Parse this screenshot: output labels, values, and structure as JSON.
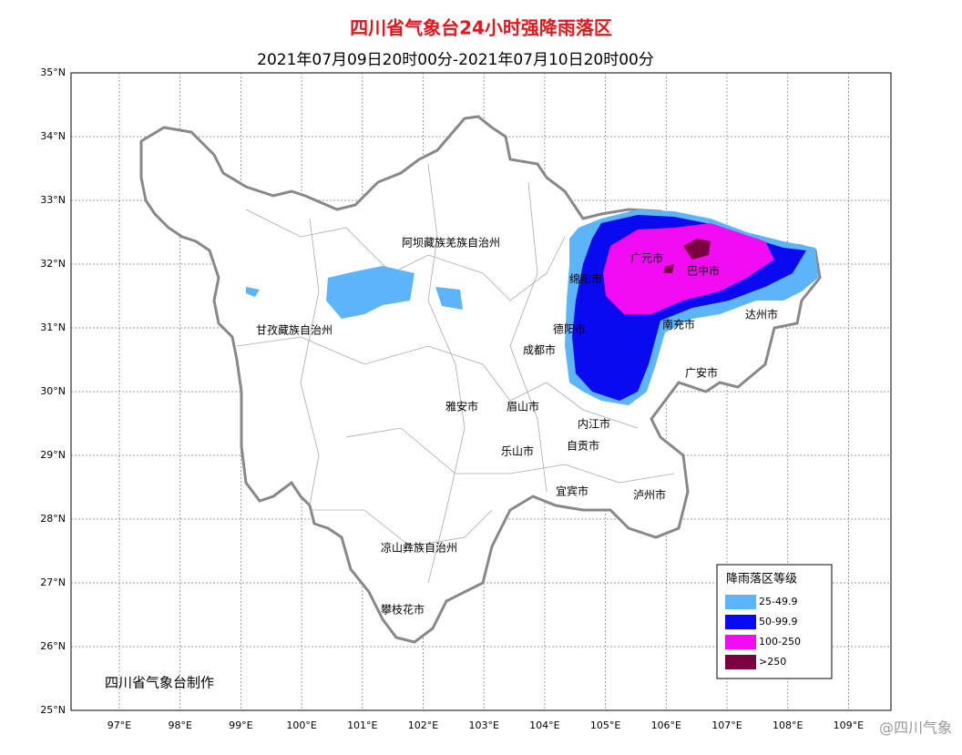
{
  "header": {
    "title": "四川省气象台24小时强降雨落区",
    "subtitle": "2021年07月09日20时00分-2021年07月10日20时00分"
  },
  "axes": {
    "lat_labels": [
      "25°N",
      "26°N",
      "27°N",
      "28°N",
      "29°N",
      "30°N",
      "31°N",
      "32°N",
      "33°N",
      "34°N",
      "35°N"
    ],
    "lon_labels": [
      "97°E",
      "98°E",
      "99°E",
      "100°E",
      "101°E",
      "102°E",
      "103°E",
      "104°E",
      "105°E",
      "106°E",
      "107°E",
      "108°E",
      "109°E"
    ]
  },
  "places": [
    "阿坝藏族羌族自治州",
    "甘孜藏族自治州",
    "绵阳市",
    "广元市",
    "巴中市",
    "达州市",
    "南充市",
    "德阳市",
    "成都市",
    "广安市",
    "雅安市",
    "眉山市",
    "内江市",
    "乐山市",
    "自贡市",
    "宜宾市",
    "泸州市",
    "凉山彝族自治州",
    "攀枝花市"
  ],
  "legend": {
    "title": "降雨落区等级",
    "items": [
      {
        "label": "25-49.9",
        "color": "#5db5f9"
      },
      {
        "label": "50-99.9",
        "color": "#0a0af0"
      },
      {
        "label": "100-250",
        "color": "#f20cf2"
      },
      {
        "label": ">250",
        "color": "#7a0040"
      }
    ]
  },
  "footer": {
    "producer": "四川省气象台制作",
    "watermark": "@四川气象"
  }
}
